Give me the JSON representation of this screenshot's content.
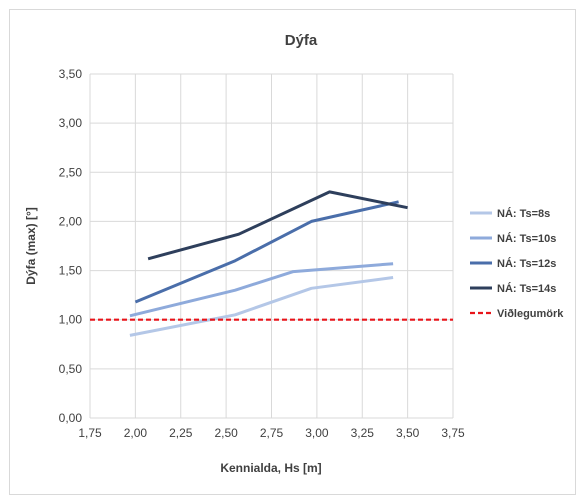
{
  "chart_data": {
    "type": "line",
    "title": "Dýfa",
    "xlabel": "Kennialda, Hs [m]",
    "ylabel": "Dýfa (max) [°]",
    "xlim": [
      1.75,
      3.75
    ],
    "ylim": [
      0,
      3.5
    ],
    "xticks": [
      "1,75",
      "2,00",
      "2,25",
      "2,50",
      "2,75",
      "3,00",
      "3,25",
      "3,50",
      "3,75"
    ],
    "yticks": [
      "0,00",
      "0,50",
      "1,00",
      "1,50",
      "2,00",
      "2,50",
      "3,00",
      "3,50"
    ],
    "grid": true,
    "legend_position": "right",
    "series": [
      {
        "name": "NÁ: Ts=8s",
        "color": "#b4c7e7",
        "style": "solid",
        "x": [
          1.97,
          2.55,
          2.97,
          3.42
        ],
        "y": [
          0.84,
          1.05,
          1.32,
          1.43
        ]
      },
      {
        "name": "NÁ: Ts=10s",
        "color": "#8eaadb",
        "style": "solid",
        "x": [
          1.97,
          2.55,
          2.87,
          3.42
        ],
        "y": [
          1.04,
          1.3,
          1.49,
          1.57
        ]
      },
      {
        "name": "NÁ: Ts=12s",
        "color": "#4a6eaa",
        "style": "solid",
        "x": [
          2.0,
          2.55,
          2.97,
          3.45
        ],
        "y": [
          1.18,
          1.6,
          2.0,
          2.2
        ]
      },
      {
        "name": "NÁ: Ts=14s",
        "color": "#2e3f5c",
        "style": "solid",
        "x": [
          2.07,
          2.57,
          3.07,
          3.5
        ],
        "y": [
          1.62,
          1.87,
          2.3,
          2.14
        ]
      },
      {
        "name": "Viðlegumörk",
        "color": "#e8141a",
        "style": "dashed",
        "x": [
          1.75,
          3.75
        ],
        "y": [
          1.0,
          1.0
        ]
      }
    ]
  }
}
